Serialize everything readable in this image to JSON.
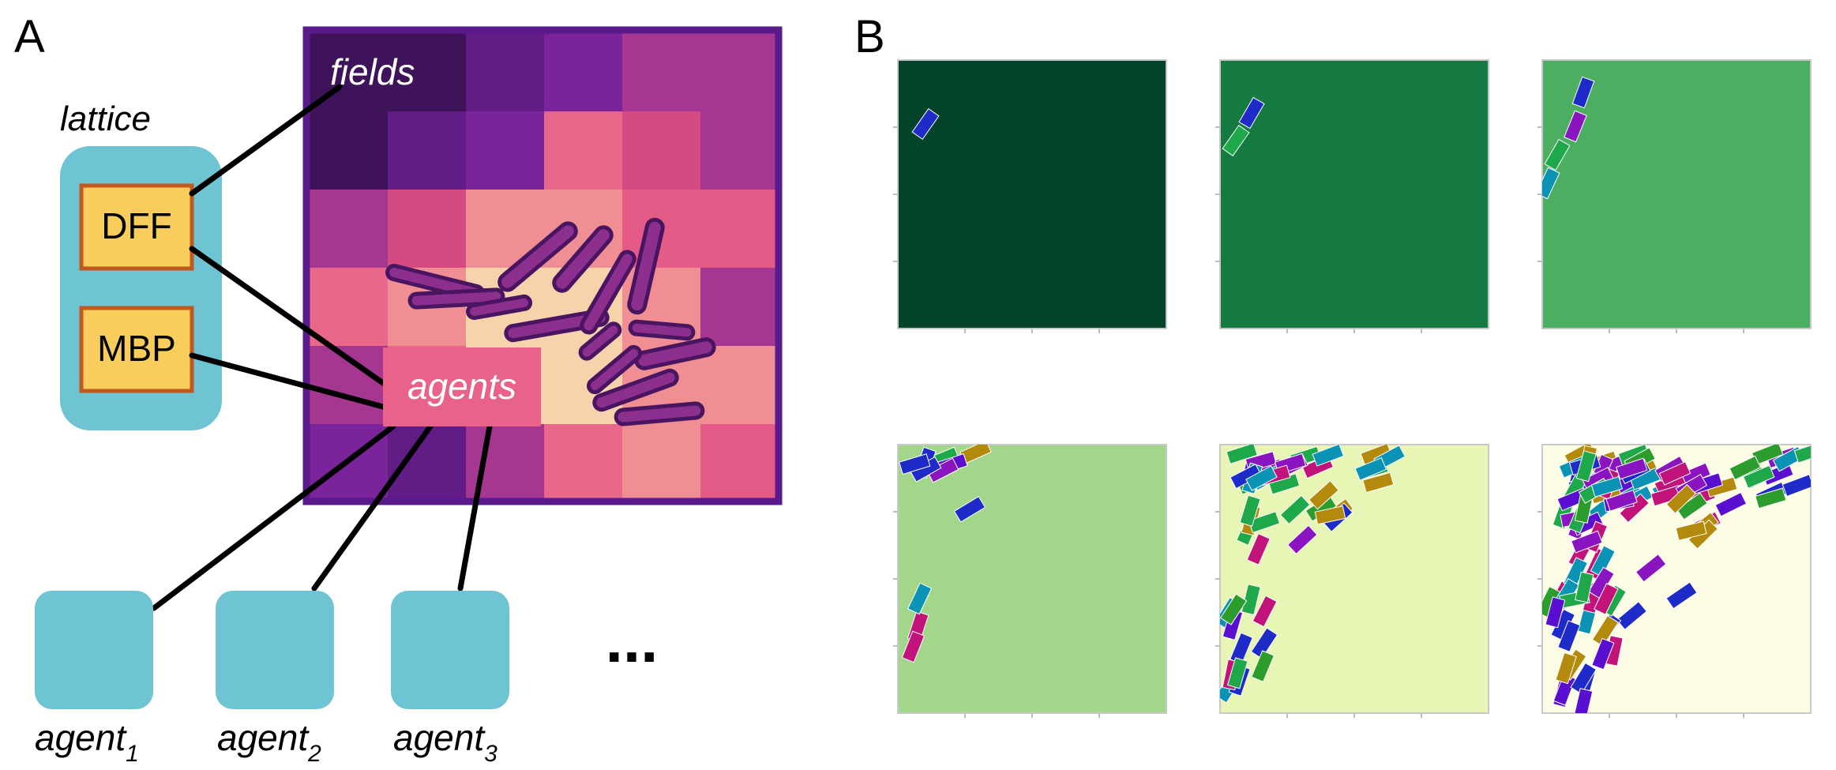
{
  "panel_a": {
    "label": "A",
    "lattice_label": "lattice",
    "processes": [
      "DFF",
      "MBP"
    ],
    "fields_label": "fields",
    "agents_label": "agents",
    "agent_base": "agent",
    "agent_subscripts": [
      "1",
      "2",
      "3"
    ],
    "ellipsis": "...",
    "colors": {
      "lattice_bg": "#6ec4d3",
      "process_fill": "#f9cd5b",
      "process_border": "#c0581f",
      "grid_border": "#5a1a8c",
      "agent_box": "#6ec4d3",
      "cell_fill": "#8c2f8f",
      "cell_stroke": "#4a1560"
    }
  },
  "panel_b": {
    "label": "B",
    "snapshot_backgrounds": [
      "#03432a",
      "#157a41",
      "#4cae61",
      "#a2d68b",
      "#e7f5b5",
      "#fdfde6"
    ]
  }
}
